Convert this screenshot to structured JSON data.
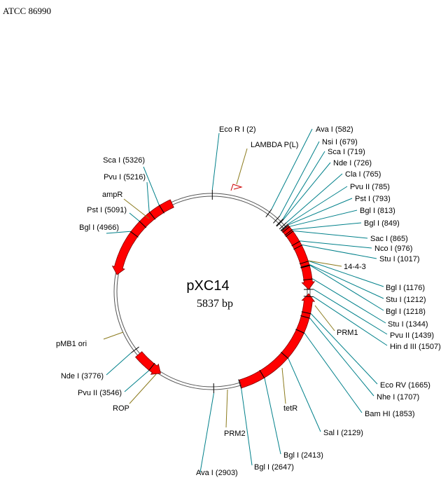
{
  "header": "ATCC 86990",
  "plasmid": {
    "name": "pXC14",
    "size": "5837 bp",
    "length": 5837
  },
  "colors": {
    "site_line": "#00808a",
    "feature_line": "#8b7a1c",
    "arrow": "#ff0000",
    "ring": "#000000"
  },
  "sites": [
    {
      "text": "Eco  R I (2)",
      "pos": 2
    },
    {
      "text": "Ava  I (582)",
      "pos": 582
    },
    {
      "text": "Nsi  I (679)",
      "pos": 679
    },
    {
      "text": "Sca  I (719)",
      "pos": 719
    },
    {
      "text": "Nde  I (726)",
      "pos": 726
    },
    {
      "text": "Cla  I (765)",
      "pos": 765
    },
    {
      "text": "Pvu  II (785)",
      "pos": 785
    },
    {
      "text": "Pst  I (793)",
      "pos": 793
    },
    {
      "text": "Bgl  I (813)",
      "pos": 813
    },
    {
      "text": "Bgl  I (849)",
      "pos": 849
    },
    {
      "text": "Sac  I (865)",
      "pos": 865
    },
    {
      "text": "Nco  I (976)",
      "pos": 976
    },
    {
      "text": "Stu  I (1017)",
      "pos": 1017
    },
    {
      "text": "Bgl  I (1176)",
      "pos": 1176
    },
    {
      "text": "Stu  I (1212)",
      "pos": 1212
    },
    {
      "text": "Bgl  I (1218)",
      "pos": 1218
    },
    {
      "text": "Stu  I (1344)",
      "pos": 1344
    },
    {
      "text": "Pvu  II (1439)",
      "pos": 1439
    },
    {
      "text": "Hin  d III (1507)",
      "pos": 1507
    },
    {
      "text": "Eco  RV (1665)",
      "pos": 1665
    },
    {
      "text": "Nhe  I (1707)",
      "pos": 1707
    },
    {
      "text": "Bam  HI (1853)",
      "pos": 1853
    },
    {
      "text": "Sal  I (2129)",
      "pos": 2129
    },
    {
      "text": "Bgl  I (2413)",
      "pos": 2413
    },
    {
      "text": "Bgl  I (2647)",
      "pos": 2647
    },
    {
      "text": "Ava  I (2903)",
      "pos": 2903
    },
    {
      "text": "Nde  I (3776)",
      "pos": 3776
    },
    {
      "text": "Pvu  II (3546)",
      "pos": 3546
    },
    {
      "text": "Bgl  I (4966)",
      "pos": 4966
    },
    {
      "text": "Pst  I (5091)",
      "pos": 5091
    },
    {
      "text": "Pvu  I (5216)",
      "pos": 5216
    },
    {
      "text": "Sca  I (5326)",
      "pos": 5326
    }
  ],
  "features": [
    {
      "text": "LAMBDA P(L)",
      "pos": 300
    },
    {
      "text": "14-4-3",
      "pos": 1090
    },
    {
      "text": "PRM1",
      "pos": 1380
    },
    {
      "text": "tetR",
      "pos": 2300
    },
    {
      "text": "PRM2",
      "pos": 2760
    },
    {
      "text": "ROP",
      "pos": 3700
    },
    {
      "text": "pMB1 ori",
      "pos": 4300
    },
    {
      "text": "ampR",
      "pos": 5150
    }
  ],
  "arrows": [
    {
      "name": "arrow-14-4-3",
      "start": 800,
      "end": 1440,
      "dir": "cw"
    },
    {
      "name": "arrow-tetR",
      "start": 1480,
      "end": 2640,
      "dir": "ccw"
    },
    {
      "name": "arrow-ROP",
      "start": 3440,
      "end": 3720,
      "dir": "ccw"
    },
    {
      "name": "arrow-ampR",
      "start": 4540,
      "end": 5440,
      "dir": "ccw"
    }
  ]
}
